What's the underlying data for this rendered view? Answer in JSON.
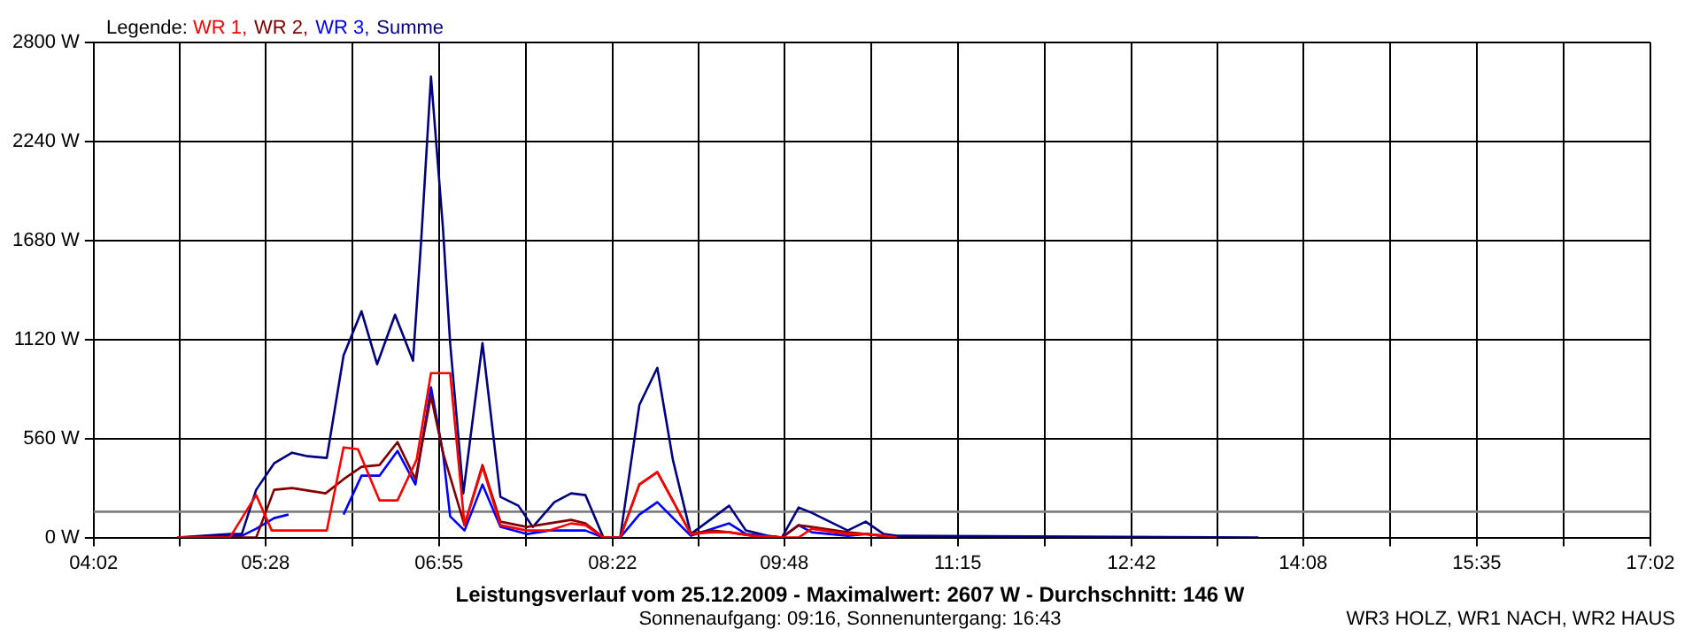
{
  "chart_data": {
    "type": "line",
    "title": "Leistungsverlauf vom 25.12.2009 - Maximalwert: 2607 W - Durchschnitt: 146 W",
    "subtitle": "Sonnenaufgang: 09:16, Sonnenuntergang: 16:43",
    "legend_title": "Legende:",
    "annotations": [
      "WR3 HOLZ, WR1 NACH, WR2 HAUS"
    ],
    "xlim": [
      4.0333,
      17.0333
    ],
    "xticks": [
      {
        "value": 4.0333,
        "label": "04:02"
      },
      {
        "value": 4.75,
        "label": null
      },
      {
        "value": 5.4667,
        "label": "05:28"
      },
      {
        "value": 6.1917,
        "label": null
      },
      {
        "value": 6.9167,
        "label": "06:55"
      },
      {
        "value": 7.6417,
        "label": null
      },
      {
        "value": 8.3667,
        "label": "08:22"
      },
      {
        "value": 9.0833,
        "label": null
      },
      {
        "value": 9.8,
        "label": "09:48"
      },
      {
        "value": 10.525,
        "label": null
      },
      {
        "value": 11.25,
        "label": "11:15"
      },
      {
        "value": 11.975,
        "label": null
      },
      {
        "value": 12.7,
        "label": "12:42"
      },
      {
        "value": 13.4167,
        "label": null
      },
      {
        "value": 14.1333,
        "label": "14:08"
      },
      {
        "value": 14.8583,
        "label": null
      },
      {
        "value": 15.5833,
        "label": "15:35"
      },
      {
        "value": 16.3083,
        "label": null
      },
      {
        "value": 17.0333,
        "label": "17:02"
      }
    ],
    "ylim": [
      0,
      2800
    ],
    "yticks": [
      {
        "value": 0,
        "label": "0 W"
      },
      {
        "value": 560,
        "label": "560 W"
      },
      {
        "value": 1120,
        "label": "1120 W"
      },
      {
        "value": 1680,
        "label": "1680 W"
      },
      {
        "value": 2240,
        "label": "2240 W"
      },
      {
        "value": 2800,
        "label": "2800 W"
      }
    ],
    "grid": true,
    "legend": "top left",
    "marker": "none",
    "line_style": "solid",
    "ref_lines": [
      {
        "axis": "y",
        "value": 146,
        "color": "#808080"
      }
    ],
    "series": [
      {
        "name": "WR 1,",
        "color": "#ff0000",
        "x": [
          4.73,
          5.17,
          5.39,
          5.52,
          5.98,
          6.12,
          6.24,
          6.42,
          6.57,
          6.73,
          6.85,
          7.01,
          7.13,
          7.28,
          7.43,
          7.65,
          7.84,
          8.02,
          8.14,
          8.29,
          8.43,
          8.59,
          8.74,
          9.02,
          9.19,
          9.34,
          9.54,
          9.78,
          9.92,
          10.03,
          10.33,
          10.48,
          10.63,
          10.74
        ],
        "values": [
          0,
          0,
          240,
          40,
          40,
          510,
          500,
          210,
          210,
          440,
          930,
          930,
          70,
          400,
          70,
          40,
          40,
          80,
          70,
          0,
          0,
          300,
          370,
          20,
          30,
          30,
          10,
          0,
          0,
          50,
          20,
          20,
          10,
          0
        ]
      },
      {
        "name": "WR 2,",
        "color": "#800000",
        "x": [
          4.73,
          5.39,
          5.54,
          5.69,
          5.97,
          6.12,
          6.27,
          6.42,
          6.57,
          6.72,
          6.85,
          6.95,
          7.13,
          7.28,
          7.43,
          7.65,
          8.02,
          8.14,
          8.29,
          8.43,
          8.59,
          8.74,
          9.02,
          9.19,
          9.34,
          9.54,
          9.78,
          9.92,
          10.03,
          10.33,
          10.48,
          10.63,
          10.74
        ],
        "values": [
          0,
          0,
          270,
          280,
          250,
          330,
          400,
          410,
          540,
          330,
          800,
          480,
          70,
          410,
          90,
          60,
          100,
          80,
          0,
          0,
          300,
          370,
          20,
          40,
          30,
          10,
          0,
          70,
          60,
          30,
          20,
          10,
          0
        ]
      },
      {
        "name": "WR 3,",
        "color": "#0000ff",
        "x": [
          4.73,
          5.27,
          5.39,
          5.54,
          5.66,
          5.69,
          6.12,
          6.27,
          6.42,
          6.57,
          6.72,
          6.85,
          6.95,
          7.01,
          7.13,
          7.28,
          7.43,
          7.65,
          7.84,
          8.14,
          8.29,
          8.43,
          8.59,
          8.74,
          9.02,
          9.34,
          9.48,
          9.78,
          9.92,
          10.03,
          10.33,
          10.48,
          10.63,
          10.74
        ],
        "values": [
          0,
          10,
          50,
          110,
          130,
          null,
          130,
          350,
          350,
          490,
          300,
          850,
          480,
          120,
          40,
          300,
          60,
          20,
          40,
          40,
          0,
          0,
          130,
          200,
          10,
          80,
          20,
          0,
          70,
          30,
          10,
          20,
          10,
          0
        ]
      },
      {
        "name": "Summe",
        "color": "#000080",
        "x": [
          4.73,
          5.17,
          5.27,
          5.39,
          5.54,
          5.69,
          5.82,
          5.98,
          6.12,
          6.27,
          6.4,
          6.55,
          6.7,
          6.77,
          6.85,
          6.95,
          7.01,
          7.12,
          7.28,
          7.43,
          7.58,
          7.7,
          7.88,
          8.02,
          8.14,
          8.29,
          8.43,
          8.59,
          8.74,
          8.87,
          9.02,
          9.34,
          9.48,
          9.66,
          9.78,
          9.92,
          10.03,
          10.33,
          10.48,
          10.63,
          10.74,
          13.76
        ],
        "values": [
          0,
          20,
          20,
          270,
          420,
          480,
          460,
          450,
          1030,
          1280,
          980,
          1260,
          1000,
          1700,
          2607,
          1750,
          1100,
          250,
          1100,
          230,
          180,
          60,
          200,
          250,
          240,
          0,
          0,
          750,
          960,
          440,
          20,
          180,
          40,
          10,
          0,
          170,
          140,
          40,
          90,
          20,
          10,
          0
        ]
      }
    ]
  }
}
